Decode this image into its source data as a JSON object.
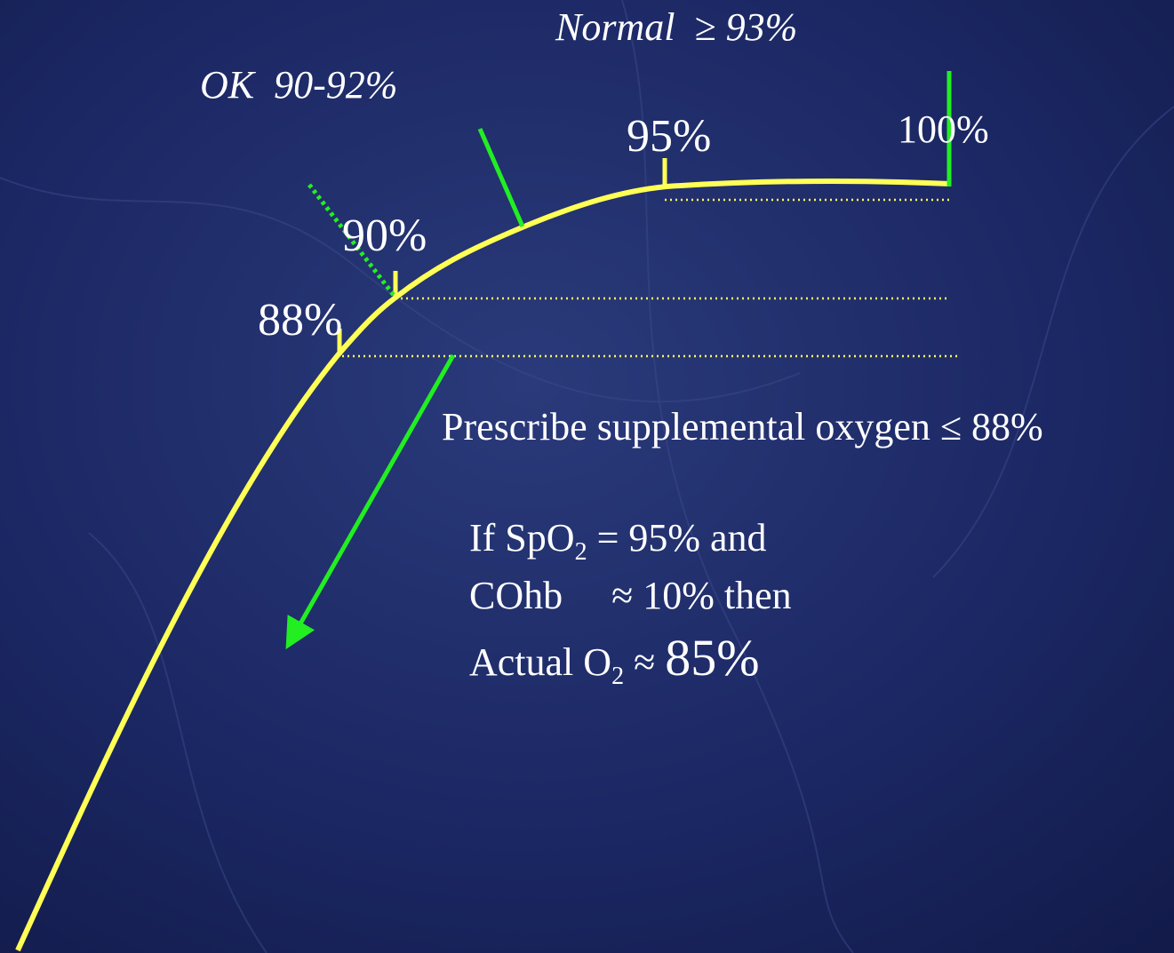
{
  "labels": {
    "normal": "Normal  ≥ 93%",
    "ok": "OK  90-92%",
    "p95": "95%",
    "p100": "100%",
    "p90": "90%",
    "p88": "88%"
  },
  "prescribe": "Prescribe supplemental oxygen ≤ 88%",
  "example": {
    "line1": [
      "If SpO",
      "2",
      " = 95% and"
    ],
    "line2": "COhb     ≈ 10% then",
    "line3": [
      "Actual O",
      "2",
      " ≈ ",
      "85%"
    ]
  }
}
